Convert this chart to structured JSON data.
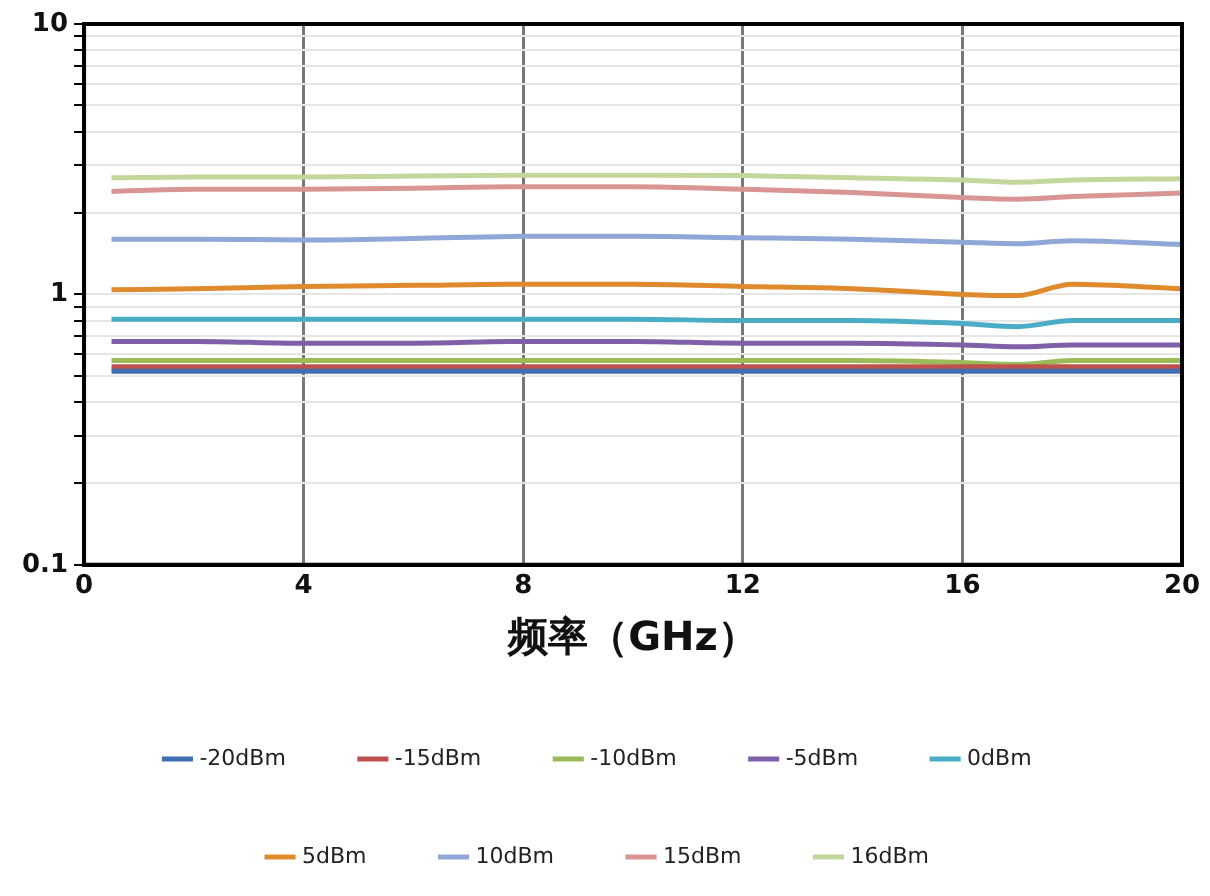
{
  "chart_data": {
    "type": "line",
    "xlabel": "频率（GHz）",
    "x": [
      0.5,
      2,
      4,
      6,
      8,
      10,
      12,
      14,
      16,
      17,
      18,
      20
    ],
    "xlim": [
      0,
      20
    ],
    "xticks": [
      0,
      4,
      8,
      12,
      16,
      20
    ],
    "ylim": [
      0.1,
      10
    ],
    "log": "y",
    "yticks": [
      {
        "value": 0.1,
        "label": "0.1"
      },
      {
        "value": 0.2,
        "label": null
      },
      {
        "value": 0.3,
        "label": null
      },
      {
        "value": 0.4,
        "label": null
      },
      {
        "value": 0.5,
        "label": null
      },
      {
        "value": 0.6,
        "label": null
      },
      {
        "value": 0.7,
        "label": null
      },
      {
        "value": 0.8,
        "label": null
      },
      {
        "value": 0.9,
        "label": null
      },
      {
        "value": 1,
        "label": "1"
      },
      {
        "value": 2,
        "label": null
      },
      {
        "value": 3,
        "label": null
      },
      {
        "value": 4,
        "label": null
      },
      {
        "value": 5,
        "label": null
      },
      {
        "value": 6,
        "label": null
      },
      {
        "value": 7,
        "label": null
      },
      {
        "value": 8,
        "label": null
      },
      {
        "value": 9,
        "label": null
      },
      {
        "value": 10,
        "label": "10"
      }
    ],
    "grid": true,
    "legend": "bottom",
    "marker": "none",
    "line_style": "solid",
    "series": [
      {
        "name": "-20dBm",
        "color": "#3f6fb0",
        "values": [
          0.52,
          0.52,
          0.52,
          0.52,
          0.52,
          0.52,
          0.52,
          0.52,
          0.52,
          0.52,
          0.52,
          0.52
        ]
      },
      {
        "name": "-15dBm",
        "color": "#c0504d",
        "values": [
          0.54,
          0.54,
          0.54,
          0.54,
          0.54,
          0.54,
          0.54,
          0.54,
          0.54,
          0.54,
          0.54,
          0.54
        ]
      },
      {
        "name": "-10dBm",
        "color": "#9bbb59",
        "values": [
          0.57,
          0.57,
          0.57,
          0.57,
          0.57,
          0.57,
          0.57,
          0.57,
          0.56,
          0.55,
          0.57,
          0.57
        ]
      },
      {
        "name": "-5dBm",
        "color": "#7f5fa8",
        "values": [
          0.67,
          0.67,
          0.66,
          0.66,
          0.67,
          0.67,
          0.66,
          0.66,
          0.65,
          0.64,
          0.65,
          0.65
        ]
      },
      {
        "name": "0dBm",
        "color": "#4bacc6",
        "values": [
          0.81,
          0.81,
          0.81,
          0.81,
          0.81,
          0.81,
          0.8,
          0.8,
          0.78,
          0.76,
          0.8,
          0.8
        ]
      },
      {
        "name": "5dBm",
        "color": "#e08a2e",
        "values": [
          1.04,
          1.05,
          1.07,
          1.08,
          1.09,
          1.09,
          1.07,
          1.05,
          1.0,
          0.99,
          1.09,
          1.05
        ]
      },
      {
        "name": "10dBm",
        "color": "#8fa8d8",
        "values": [
          1.6,
          1.6,
          1.59,
          1.61,
          1.64,
          1.64,
          1.62,
          1.6,
          1.56,
          1.54,
          1.58,
          1.53
        ]
      },
      {
        "name": "15dBm",
        "color": "#d99594",
        "values": [
          2.4,
          2.45,
          2.45,
          2.47,
          2.5,
          2.5,
          2.45,
          2.38,
          2.28,
          2.25,
          2.3,
          2.37
        ]
      },
      {
        "name": "16dBm",
        "color": "#c3d69b",
        "values": [
          2.7,
          2.72,
          2.72,
          2.74,
          2.76,
          2.76,
          2.75,
          2.7,
          2.65,
          2.6,
          2.65,
          2.68
        ]
      }
    ]
  }
}
